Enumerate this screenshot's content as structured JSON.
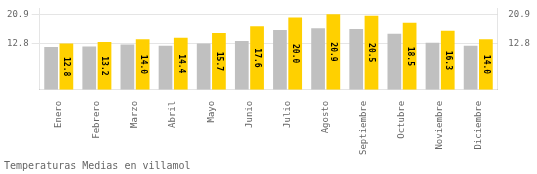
{
  "chart_data": {
    "type": "bar",
    "title": "Temperaturas Medias en villamol",
    "categories": [
      "Enero",
      "Febrero",
      "Marzo",
      "Abril",
      "Mayo",
      "Junio",
      "Julio",
      "Agosto",
      "Septiembre",
      "Octubre",
      "Noviembre",
      "Diciembre"
    ],
    "series": [
      {
        "color": "#C0C0C0",
        "values": [
          11.8,
          12.0,
          12.5,
          12.2,
          12.8,
          13.5,
          16.5,
          17.0,
          16.8,
          15.5,
          13.0,
          12.2
        ]
      },
      {
        "color": "#FFD000",
        "values": [
          12.8,
          13.2,
          14.0,
          14.4,
          15.7,
          17.6,
          20.0,
          20.9,
          20.5,
          18.5,
          16.3,
          14.0
        ],
        "value_labels": [
          "12.8",
          "13.2",
          "14.0",
          "14.4",
          "15.7",
          "17.6",
          "20.0",
          "20.9",
          "20.5",
          "18.5",
          "16.3",
          "14.0"
        ],
        "data_labels": true
      }
    ],
    "ylim": [
      0,
      22.5
    ],
    "yticks": [
      12.8,
      20.9
    ],
    "y2lim": [
      0,
      22.5
    ],
    "y2ticks": [
      12.8,
      20.9
    ],
    "grid": true
  }
}
